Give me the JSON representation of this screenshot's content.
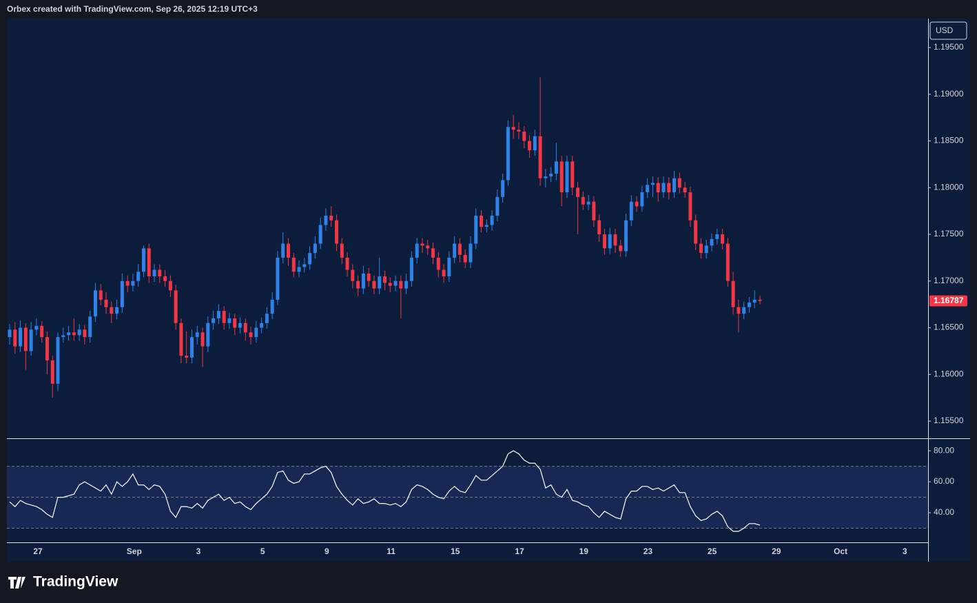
{
  "header": "Orbex created with TradingView.com, Sep 26, 2025 12:19 UTC+3",
  "brand": "TradingView",
  "chart_data": {
    "type": "candlestick",
    "currency": "USD",
    "up_color": "#2f83e8",
    "down_color": "#f23645",
    "ylim": [
      1.15316,
      1.1981
    ],
    "yticks": [
      {
        "value": 1.155,
        "label": "1.15500"
      },
      {
        "value": 1.16,
        "label": "1.16000"
      },
      {
        "value": 1.165,
        "label": "1.16500"
      },
      {
        "value": 1.17,
        "label": "1.17000"
      },
      {
        "value": 1.175,
        "label": "1.17500"
      },
      {
        "value": 1.18,
        "label": "1.18000"
      },
      {
        "value": 1.185,
        "label": "1.18500"
      },
      {
        "value": 1.19,
        "label": "1.19000"
      },
      {
        "value": 1.195,
        "label": "1.19500"
      }
    ],
    "xtick_labels": [
      "27",
      "Sep",
      "3",
      "5",
      "9",
      "11",
      "15",
      "17",
      "19",
      "23",
      "25",
      "29",
      "Oct",
      "3"
    ],
    "candles": [
      [
        1.164,
        1.1654,
        1.1632,
        1.1648
      ],
      [
        1.1648,
        1.1656,
        1.1622,
        1.163
      ],
      [
        1.163,
        1.1658,
        1.1624,
        1.165
      ],
      [
        1.165,
        1.1655,
        1.1605,
        1.1625
      ],
      [
        1.1625,
        1.1656,
        1.162,
        1.1648
      ],
      [
        1.1648,
        1.166,
        1.1642,
        1.1652
      ],
      [
        1.1652,
        1.1657,
        1.1634,
        1.164
      ],
      [
        1.164,
        1.1646,
        1.16,
        1.1615
      ],
      [
        1.1615,
        1.162,
        1.1575,
        1.159
      ],
      [
        1.159,
        1.1645,
        1.1582,
        1.164
      ],
      [
        1.164,
        1.165,
        1.1634,
        1.1642
      ],
      [
        1.1642,
        1.1652,
        1.1636,
        1.1645
      ],
      [
        1.1645,
        1.166,
        1.1636,
        1.1642
      ],
      [
        1.1642,
        1.1654,
        1.1636,
        1.1648
      ],
      [
        1.1648,
        1.1653,
        1.1632,
        1.164
      ],
      [
        1.164,
        1.1668,
        1.1634,
        1.1662
      ],
      [
        1.1662,
        1.1698,
        1.1656,
        1.169
      ],
      [
        1.169,
        1.1697,
        1.1674,
        1.168
      ],
      [
        1.168,
        1.1688,
        1.1665,
        1.1672
      ],
      [
        1.1672,
        1.1678,
        1.1655,
        1.1665
      ],
      [
        1.1665,
        1.168,
        1.1659,
        1.1672
      ],
      [
        1.1672,
        1.1708,
        1.1666,
        1.17
      ],
      [
        1.17,
        1.1706,
        1.1688,
        1.1695
      ],
      [
        1.1695,
        1.1708,
        1.1689,
        1.17
      ],
      [
        1.17,
        1.1718,
        1.1694,
        1.171
      ],
      [
        1.171,
        1.1738,
        1.1704,
        1.1735
      ],
      [
        1.1735,
        1.174,
        1.1698,
        1.1705
      ],
      [
        1.1705,
        1.1718,
        1.1699,
        1.1712
      ],
      [
        1.1712,
        1.1718,
        1.1698,
        1.1705
      ],
      [
        1.1705,
        1.1712,
        1.1694,
        1.17
      ],
      [
        1.17,
        1.1706,
        1.1683,
        1.169
      ],
      [
        1.169,
        1.1696,
        1.1648,
        1.1655
      ],
      [
        1.1655,
        1.166,
        1.1612,
        1.162
      ],
      [
        1.162,
        1.1646,
        1.1612,
        1.1618
      ],
      [
        1.1618,
        1.1648,
        1.1612,
        1.164
      ],
      [
        1.164,
        1.1652,
        1.1632,
        1.1645
      ],
      [
        1.1645,
        1.165,
        1.1608,
        1.163
      ],
      [
        1.163,
        1.1662,
        1.1624,
        1.1655
      ],
      [
        1.1655,
        1.1668,
        1.1648,
        1.166
      ],
      [
        1.166,
        1.1675,
        1.1654,
        1.1668
      ],
      [
        1.1668,
        1.1673,
        1.1648,
        1.1655
      ],
      [
        1.1655,
        1.1666,
        1.1649,
        1.166
      ],
      [
        1.166,
        1.1665,
        1.1642,
        1.165
      ],
      [
        1.165,
        1.1661,
        1.1644,
        1.1655
      ],
      [
        1.1655,
        1.166,
        1.1636,
        1.1645
      ],
      [
        1.1645,
        1.1651,
        1.1632,
        1.164
      ],
      [
        1.164,
        1.1657,
        1.1634,
        1.165
      ],
      [
        1.165,
        1.1661,
        1.1644,
        1.1655
      ],
      [
        1.1655,
        1.1672,
        1.1649,
        1.1665
      ],
      [
        1.1665,
        1.1688,
        1.1659,
        1.168
      ],
      [
        1.168,
        1.1732,
        1.1674,
        1.1725
      ],
      [
        1.1725,
        1.1752,
        1.1719,
        1.174
      ],
      [
        1.174,
        1.1746,
        1.1716,
        1.1725
      ],
      [
        1.1725,
        1.173,
        1.1704,
        1.171
      ],
      [
        1.171,
        1.1722,
        1.1704,
        1.1715
      ],
      [
        1.1715,
        1.1725,
        1.1709,
        1.1718
      ],
      [
        1.1718,
        1.1737,
        1.1712,
        1.173
      ],
      [
        1.173,
        1.1748,
        1.1724,
        1.174
      ],
      [
        1.174,
        1.1768,
        1.1734,
        1.176
      ],
      [
        1.176,
        1.1778,
        1.1754,
        1.177
      ],
      [
        1.177,
        1.178,
        1.1758,
        1.1765
      ],
      [
        1.1765,
        1.1771,
        1.1732,
        1.174
      ],
      [
        1.174,
        1.1746,
        1.1718,
        1.1725
      ],
      [
        1.1725,
        1.1731,
        1.1705,
        1.1712
      ],
      [
        1.1712,
        1.1718,
        1.1692,
        1.17
      ],
      [
        1.17,
        1.1706,
        1.1684,
        1.1692
      ],
      [
        1.1692,
        1.1716,
        1.1686,
        1.1708
      ],
      [
        1.1708,
        1.1714,
        1.1694,
        1.17
      ],
      [
        1.17,
        1.1706,
        1.1686,
        1.1692
      ],
      [
        1.1692,
        1.1725,
        1.1686,
        1.1705
      ],
      [
        1.1705,
        1.1711,
        1.169,
        1.1698
      ],
      [
        1.1698,
        1.1704,
        1.1688,
        1.1695
      ],
      [
        1.1695,
        1.1706,
        1.1689,
        1.17
      ],
      [
        1.17,
        1.1706,
        1.166,
        1.1692
      ],
      [
        1.1692,
        1.1708,
        1.1686,
        1.17
      ],
      [
        1.17,
        1.1732,
        1.1694,
        1.1725
      ],
      [
        1.1725,
        1.1746,
        1.1719,
        1.174
      ],
      [
        1.174,
        1.1746,
        1.173,
        1.1738
      ],
      [
        1.1738,
        1.1744,
        1.1728,
        1.1735
      ],
      [
        1.1735,
        1.1741,
        1.1718,
        1.1725
      ],
      [
        1.1725,
        1.1731,
        1.1704,
        1.1712
      ],
      [
        1.1712,
        1.1718,
        1.1698,
        1.1705
      ],
      [
        1.1705,
        1.1732,
        1.1699,
        1.1725
      ],
      [
        1.1725,
        1.1748,
        1.1719,
        1.174
      ],
      [
        1.174,
        1.1746,
        1.172,
        1.1728
      ],
      [
        1.1728,
        1.1734,
        1.1714,
        1.172
      ],
      [
        1.172,
        1.1748,
        1.1714,
        1.174
      ],
      [
        1.174,
        1.1778,
        1.1734,
        1.177
      ],
      [
        1.177,
        1.1776,
        1.1752,
        1.1758
      ],
      [
        1.1758,
        1.1766,
        1.1752,
        1.176
      ],
      [
        1.176,
        1.1776,
        1.1754,
        1.177
      ],
      [
        1.177,
        1.1798,
        1.1764,
        1.179
      ],
      [
        1.179,
        1.1815,
        1.1784,
        1.1808
      ],
      [
        1.1808,
        1.1872,
        1.1802,
        1.1865
      ],
      [
        1.1865,
        1.1878,
        1.1852,
        1.1862
      ],
      [
        1.1862,
        1.187,
        1.1852,
        1.186
      ],
      [
        1.186,
        1.1866,
        1.1842,
        1.185
      ],
      [
        1.185,
        1.1856,
        1.1832,
        1.184
      ],
      [
        1.184,
        1.1862,
        1.1834,
        1.1855
      ],
      [
        1.1855,
        1.1918,
        1.1802,
        1.181
      ],
      [
        1.181,
        1.182,
        1.18,
        1.1812
      ],
      [
        1.1812,
        1.1822,
        1.1806,
        1.1815
      ],
      [
        1.1815,
        1.1848,
        1.1808,
        1.1828
      ],
      [
        1.1828,
        1.1834,
        1.178,
        1.1795
      ],
      [
        1.1795,
        1.1834,
        1.1789,
        1.1828
      ],
      [
        1.1828,
        1.1834,
        1.1792,
        1.18
      ],
      [
        1.18,
        1.1806,
        1.175,
        1.179
      ],
      [
        1.179,
        1.1796,
        1.1776,
        1.1782
      ],
      [
        1.1782,
        1.1792,
        1.1776,
        1.1785
      ],
      [
        1.1785,
        1.1791,
        1.1758,
        1.1765
      ],
      [
        1.1765,
        1.1771,
        1.1742,
        1.175
      ],
      [
        1.175,
        1.1756,
        1.1728,
        1.1735
      ],
      [
        1.1735,
        1.1757,
        1.1729,
        1.175
      ],
      [
        1.175,
        1.1756,
        1.173,
        1.1738
      ],
      [
        1.1738,
        1.1744,
        1.1726,
        1.1732
      ],
      [
        1.1732,
        1.1772,
        1.1726,
        1.1765
      ],
      [
        1.1765,
        1.1792,
        1.1759,
        1.1785
      ],
      [
        1.1785,
        1.1791,
        1.1774,
        1.178
      ],
      [
        1.178,
        1.1802,
        1.1774,
        1.1795
      ],
      [
        1.1795,
        1.181,
        1.1789,
        1.1803
      ],
      [
        1.1803,
        1.1812,
        1.179,
        1.1805
      ],
      [
        1.1805,
        1.1811,
        1.1785,
        1.1795
      ],
      [
        1.1795,
        1.1812,
        1.1789,
        1.1805
      ],
      [
        1.1805,
        1.1811,
        1.1787,
        1.1795
      ],
      [
        1.1795,
        1.1818,
        1.1789,
        1.181
      ],
      [
        1.181,
        1.1816,
        1.1794,
        1.18
      ],
      [
        1.18,
        1.1806,
        1.1789,
        1.1795
      ],
      [
        1.1795,
        1.1801,
        1.1758,
        1.1765
      ],
      [
        1.1765,
        1.1771,
        1.1733,
        1.174
      ],
      [
        1.174,
        1.1746,
        1.1724,
        1.173
      ],
      [
        1.173,
        1.1744,
        1.1724,
        1.1738
      ],
      [
        1.1738,
        1.1751,
        1.1732,
        1.1745
      ],
      [
        1.1745,
        1.1756,
        1.1739,
        1.175
      ],
      [
        1.175,
        1.1756,
        1.1734,
        1.174
      ],
      [
        1.174,
        1.1746,
        1.1694,
        1.17
      ],
      [
        1.17,
        1.171,
        1.1664,
        1.1672
      ],
      [
        1.1672,
        1.168,
        1.1645,
        1.1665
      ],
      [
        1.1665,
        1.1678,
        1.1659,
        1.1672
      ],
      [
        1.1672,
        1.1683,
        1.1666,
        1.1677
      ],
      [
        1.1677,
        1.169,
        1.1671,
        1.168
      ],
      [
        1.168,
        1.1684,
        1.1675,
        1.16787
      ]
    ],
    "rsi": {
      "color": "#ffffff",
      "ylim": [
        20.9,
        87.6
      ],
      "yticks": [
        {
          "value": 40,
          "label": "40.00"
        },
        {
          "value": 60,
          "label": "60.00"
        },
        {
          "value": 80,
          "label": "80.00"
        }
      ],
      "levels": [
        30,
        50,
        70
      ],
      "values": [
        47,
        44,
        48,
        46,
        45,
        44,
        42,
        39,
        37,
        50,
        50,
        51,
        52,
        58,
        60,
        58,
        56,
        54,
        58,
        52,
        60,
        57,
        60,
        65,
        58,
        58,
        55,
        58,
        57,
        52,
        41,
        37,
        44,
        44,
        43,
        46,
        43,
        48,
        50,
        52,
        48,
        50,
        46,
        47,
        44,
        42,
        46,
        49,
        52,
        57,
        66,
        67,
        61,
        59,
        60,
        65,
        65,
        67,
        69,
        70,
        66,
        57,
        52,
        48,
        45,
        49,
        46,
        47,
        49,
        46,
        46,
        45,
        46,
        44,
        47,
        55,
        58,
        57,
        55,
        52,
        50,
        49,
        54,
        57,
        54,
        53,
        58,
        64,
        61,
        61,
        64,
        67,
        70,
        78,
        80,
        78,
        74,
        72,
        72,
        68,
        56,
        58,
        52,
        50,
        55,
        48,
        47,
        45,
        44,
        40,
        37,
        41,
        39,
        37,
        36,
        49,
        54,
        54,
        57,
        57,
        55,
        56,
        54,
        56,
        58,
        53,
        53,
        44,
        38,
        35,
        36,
        39,
        41,
        38,
        31,
        28,
        28,
        30,
        33,
        33,
        32
      ]
    }
  }
}
